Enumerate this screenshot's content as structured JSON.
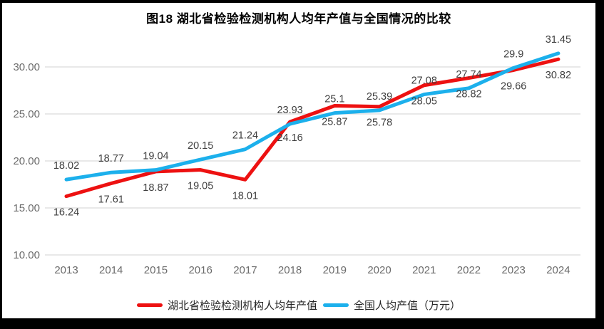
{
  "title": "图18 湖北省检验检测机构人均年产值与全国情况的比较",
  "colors": {
    "hubei": "#ED1111",
    "national": "#1CB0EC",
    "grid": "#D9D9D9",
    "axis_text": "#6B6B6B",
    "label_text": "#3F3F3F",
    "title_text": "#000000",
    "legend_text": "#262626",
    "frame": "#000000",
    "background": "#FFFFFF"
  },
  "chart_data": {
    "type": "line",
    "title": "图18 湖北省检验检测机构人均年产值与全国情况的比较",
    "x": [
      2013,
      2014,
      2015,
      2016,
      2017,
      2018,
      2019,
      2020,
      2021,
      2022,
      2023,
      2024
    ],
    "series": [
      {
        "name": "湖北省检验检测机构人均年产值",
        "color_key": "hubei",
        "label_position": "below",
        "values": [
          16.24,
          17.61,
          18.87,
          19.05,
          18.01,
          24.16,
          25.87,
          25.78,
          28.05,
          28.82,
          29.66,
          30.82
        ]
      },
      {
        "name": "全国人均产值（万元）",
        "color_key": "national",
        "label_position": "above",
        "values": [
          18.02,
          18.77,
          19.04,
          20.15,
          21.24,
          23.93,
          25.1,
          25.39,
          27.08,
          27.74,
          29.9,
          31.45
        ]
      }
    ],
    "yticks": [
      10,
      15,
      20,
      25,
      30
    ],
    "ytick_decimals": 2,
    "ylim": [
      10,
      32.6
    ],
    "xlabel": "",
    "ylabel": "",
    "grid": true,
    "data_labels": true,
    "legend_position": "bottom"
  }
}
